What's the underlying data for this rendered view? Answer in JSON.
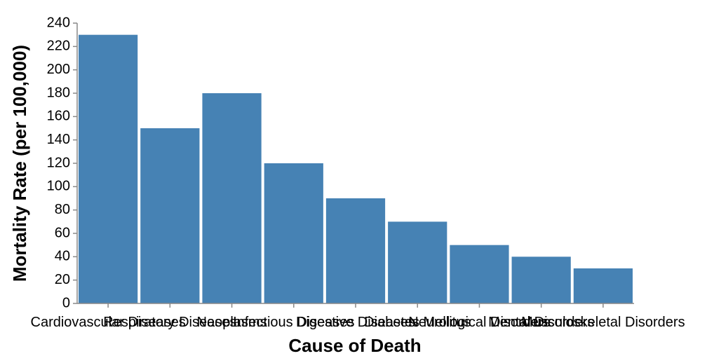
{
  "chart_data": {
    "type": "bar",
    "categories": [
      "Cardiovascular Diseases",
      "Respiratory Diseases",
      "Neoplasms",
      "Infectious Diseases",
      "Digestive Diseases",
      "Diabetes Mellitus",
      "Neurological Disorders",
      "Mental Disorders",
      "Musculoskeletal Disorders"
    ],
    "values": [
      230,
      150,
      180,
      120,
      90,
      70,
      50,
      40,
      30
    ],
    "xlabel": "Cause of Death",
    "ylabel": "Mortality Rate (per 100,000)",
    "ylim": [
      0,
      240
    ],
    "yticks": [
      0,
      20,
      40,
      60,
      80,
      100,
      120,
      140,
      160,
      180,
      200,
      220,
      240
    ],
    "grid": false,
    "bar_color": "#4682b4"
  }
}
